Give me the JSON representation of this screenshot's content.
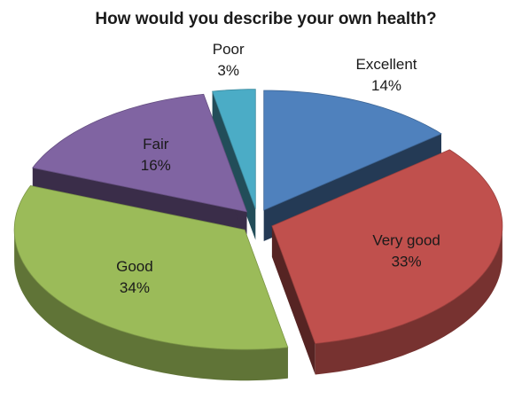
{
  "chart_data": {
    "type": "pie",
    "title": "How would you describe your own health?",
    "categories": [
      "Excellent",
      "Very good",
      "Good",
      "Fair",
      "Poor"
    ],
    "values": [
      14,
      33,
      34,
      16,
      3
    ],
    "value_labels": [
      "14%",
      "33%",
      "34%",
      "16%",
      "3%"
    ],
    "colors": [
      "#4f81bd",
      "#c0504d",
      "#9bbb59",
      "#8064a2",
      "#4bacc6"
    ]
  }
}
